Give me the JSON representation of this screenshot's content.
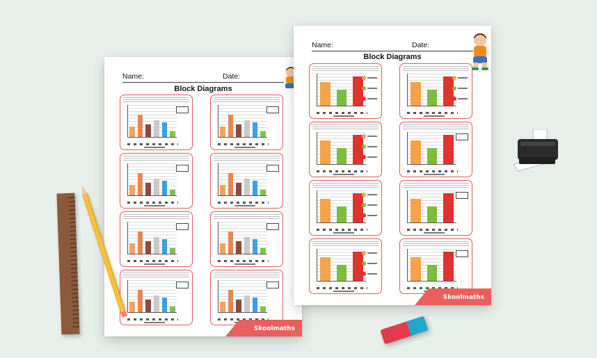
{
  "worksheet_left": {
    "name_label": "Name:",
    "date_label": "Date:",
    "title": "Block Diagrams",
    "brand": "Skoolmaths",
    "card_count": 8,
    "bar_colors": [
      "#f4a35c",
      "#e8874f",
      "#8c4b3c",
      "#c9c9c9",
      "#3ca1de",
      "#7dc34a"
    ]
  },
  "worksheet_right": {
    "name_label": "Name:",
    "date_label": "Date:",
    "title": "Block Diagrams",
    "brand": "Skoolmaths",
    "card_count": 8,
    "bar_colors": [
      "#f4a34a",
      "#7dbd3e",
      "#e0322f"
    ],
    "legend_colors": [
      "#f4a34a",
      "#7dbd3e",
      "#e0322f"
    ]
  },
  "colors": {
    "background": "#e8efea",
    "card_border": "#e15959",
    "accent": "#e85f5c"
  },
  "icons": [
    "printer-icon",
    "pencil-icon",
    "ruler-icon",
    "eraser-icon",
    "boy-illustration"
  ]
}
